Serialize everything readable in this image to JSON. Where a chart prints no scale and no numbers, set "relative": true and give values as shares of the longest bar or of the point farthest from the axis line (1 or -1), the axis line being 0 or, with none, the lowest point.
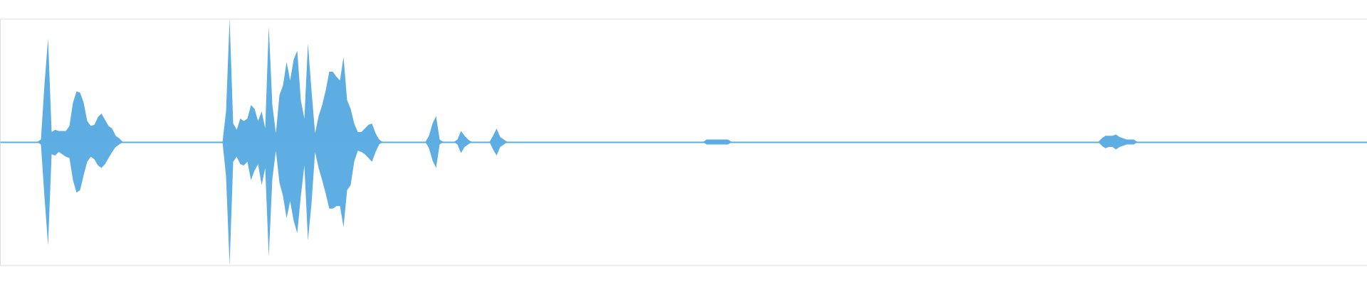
{
  "chart_data": {
    "type": "area",
    "relative": true,
    "tick_labels": false,
    "categories": [
      null,
      null,
      null,
      null,
      null,
      null,
      null,
      null,
      null,
      null,
      null,
      null,
      null,
      null,
      null,
      null,
      null,
      null,
      null,
      null,
      null,
      null,
      null,
      null,
      null,
      null,
      null,
      null,
      null,
      null,
      null,
      null,
      null,
      null,
      null,
      null,
      null,
      null,
      null,
      null,
      null,
      null,
      null,
      null,
      null,
      null,
      null,
      null,
      null,
      null,
      null,
      null,
      null,
      null,
      null,
      null,
      null,
      null,
      null,
      null,
      null,
      null,
      null,
      null,
      null,
      null,
      null,
      null,
      null,
      null,
      null,
      null,
      null,
      null,
      null,
      null,
      null,
      null,
      null,
      null,
      null,
      null,
      null,
      null,
      null,
      null,
      null,
      null,
      null,
      null,
      null,
      null,
      null,
      null,
      null,
      null,
      null,
      null,
      null,
      null,
      null,
      null,
      null,
      null,
      null,
      null,
      null,
      null,
      null,
      null,
      null,
      null,
      null,
      null,
      null,
      null,
      null,
      null,
      null,
      null,
      null,
      null,
      null,
      null,
      null,
      null,
      null,
      null,
      null,
      null,
      null,
      null,
      null,
      null,
      null,
      null,
      null,
      null,
      null,
      null,
      null,
      null,
      null,
      null,
      null,
      null,
      null,
      null,
      null,
      null,
      null,
      null,
      null,
      null,
      null,
      null,
      null,
      null,
      null,
      null,
      null,
      null,
      null,
      null,
      null,
      null,
      null,
      null,
      null,
      null,
      null,
      null,
      null,
      null,
      null,
      null,
      null,
      null,
      null,
      null,
      null,
      null,
      null,
      null,
      null,
      null,
      null,
      null,
      null,
      null,
      null,
      null,
      null,
      null,
      null,
      null,
      null,
      null,
      null,
      null,
      null,
      null,
      null,
      null,
      null,
      null,
      null,
      null,
      null,
      null,
      null,
      null,
      null,
      null,
      null,
      null,
      null,
      null,
      null,
      null,
      null,
      null,
      null,
      null,
      null,
      null,
      null,
      null,
      null,
      null,
      null,
      null,
      null,
      null,
      null,
      null,
      null,
      null,
      null,
      null,
      null,
      null,
      null,
      null,
      null,
      null,
      null,
      null,
      null,
      null,
      null,
      null,
      null,
      null,
      null,
      null,
      null,
      null,
      null,
      null,
      null,
      null,
      null,
      null,
      null,
      null,
      null,
      null,
      null,
      null,
      null,
      null,
      null,
      null,
      null,
      null,
      null,
      null,
      null,
      null,
      null,
      null,
      null,
      null,
      null,
      null,
      null,
      null,
      null,
      null,
      null,
      null,
      null,
      null,
      null,
      null,
      null,
      null,
      null,
      null,
      null,
      null,
      null,
      null,
      null,
      null,
      null,
      null,
      null,
      null,
      null,
      null,
      null,
      null,
      null,
      null,
      null,
      null,
      null,
      null,
      null,
      null,
      null,
      null,
      null,
      null,
      null,
      null,
      null,
      null,
      null,
      null,
      null,
      null,
      null,
      null,
      null,
      null,
      null,
      null,
      null,
      null,
      null,
      null,
      null,
      null,
      null,
      null,
      null,
      null,
      null,
      null,
      null,
      null,
      null,
      null,
      null,
      null,
      null,
      null,
      null,
      null,
      null,
      null,
      null,
      null,
      null,
      null,
      null,
      null,
      null,
      null,
      null,
      null,
      null,
      null,
      null,
      null,
      null,
      null,
      null,
      null,
      null,
      null
    ],
    "series": [
      {
        "color": "#5dade2",
        "values": [
          0,
          0,
          0,
          0,
          0,
          0,
          0,
          0,
          0,
          0,
          0,
          0.02,
          0.47,
          0.84,
          0.08,
          0.1,
          0.09,
          0.09,
          0.09,
          0.13,
          0.32,
          0.41,
          0.4,
          0.32,
          0.17,
          0.13,
          0.14,
          0.2,
          0.23,
          0.18,
          0.13,
          0.11,
          0.05,
          0.03,
          0,
          0,
          0,
          0,
          0,
          0,
          0,
          0,
          0,
          0,
          0,
          0,
          0,
          0,
          0,
          0,
          0,
          0,
          0,
          0,
          0,
          0,
          0,
          0,
          0,
          0,
          0,
          0,
          0,
          0.25,
          1,
          0.15,
          0.1,
          0.19,
          0.17,
          0.19,
          0.3,
          0.27,
          0.17,
          0.25,
          0.11,
          0.94,
          0.3,
          0.07,
          0.38,
          0.46,
          0.65,
          0.5,
          0.67,
          0.74,
          0.34,
          0.19,
          0.8,
          0.42,
          0.07,
          0.21,
          0.3,
          0.42,
          0.57,
          0.57,
          0.53,
          0.5,
          0.69,
          0.34,
          0.27,
          0.15,
          0.08,
          0.08,
          0.11,
          0.14,
          0.15,
          0.07,
          0.02,
          0,
          0,
          0,
          0,
          0,
          0,
          0,
          0,
          0,
          0,
          0,
          0,
          0,
          0.05,
          0.15,
          0.21,
          0.02,
          0,
          0,
          0,
          0,
          0.02,
          0.09,
          0.05,
          0.02,
          0,
          0,
          0,
          0,
          0,
          0,
          0.05,
          0.11,
          0.04,
          0.02,
          0,
          0,
          0,
          0,
          0,
          0,
          0,
          0,
          0,
          0,
          0,
          0,
          0,
          0,
          0,
          0,
          0,
          0,
          0,
          0,
          0,
          0,
          0,
          0,
          0,
          0,
          0,
          0,
          0,
          0,
          0,
          0,
          0,
          0,
          0,
          0,
          0,
          0,
          0,
          0,
          0,
          0,
          0,
          0,
          0,
          0,
          0,
          0,
          0,
          0,
          0,
          0,
          0,
          0,
          0,
          0,
          0.02,
          0.02,
          0.02,
          0.02,
          0.02,
          0.02,
          0.02,
          0,
          0,
          0,
          0,
          0,
          0,
          0,
          0,
          0,
          0,
          0,
          0,
          0,
          0,
          0,
          0,
          0,
          0,
          0,
          0,
          0,
          0,
          0,
          0,
          0,
          0,
          0,
          0,
          0,
          0,
          0,
          0,
          0,
          0,
          0,
          0,
          0,
          0,
          0,
          0,
          0,
          0,
          0,
          0,
          0,
          0,
          0,
          0,
          0,
          0,
          0,
          0,
          0,
          0,
          0,
          0,
          0,
          0,
          0,
          0,
          0,
          0,
          0,
          0,
          0,
          0,
          0,
          0,
          0,
          0,
          0,
          0,
          0,
          0,
          0,
          0,
          0,
          0,
          0,
          0,
          0,
          0,
          0,
          0,
          0,
          0,
          0,
          0,
          0,
          0,
          0,
          0,
          0,
          0,
          0,
          0,
          0,
          0,
          0,
          0,
          0,
          0,
          0,
          0,
          0.03,
          0.05,
          0.05,
          0.05,
          0.06,
          0.04,
          0.03,
          0.02,
          0.02,
          0.02,
          0,
          0,
          0,
          0,
          0,
          0,
          0,
          0,
          0,
          0,
          0,
          0,
          0,
          0,
          0,
          0,
          0,
          0,
          0,
          0,
          0,
          0,
          0,
          0,
          0,
          0,
          0,
          0,
          0,
          0,
          0,
          0,
          0,
          0,
          0,
          0,
          0,
          0,
          0,
          0,
          0,
          0,
          0,
          0,
          0,
          0,
          0,
          0,
          0,
          0,
          0,
          0,
          0,
          0,
          0,
          0,
          0,
          0,
          0,
          0,
          0,
          0,
          0,
          0,
          0
        ]
      },
      {
        "color": "#5eaee3",
        "values": [
          0,
          0,
          0,
          0,
          0,
          0,
          0,
          0,
          0,
          0,
          0,
          -0.02,
          -0.45,
          -0.84,
          -0.1,
          -0.11,
          -0.08,
          -0.1,
          -0.12,
          -0.13,
          -0.31,
          -0.41,
          -0.39,
          -0.27,
          -0.16,
          -0.12,
          -0.14,
          -0.19,
          -0.21,
          -0.18,
          -0.13,
          -0.08,
          -0.04,
          -0.02,
          0,
          0,
          0,
          0,
          0,
          0,
          0,
          0,
          0,
          0,
          0,
          0,
          0,
          0,
          0,
          0,
          0,
          0,
          0,
          0,
          0,
          0,
          0,
          0,
          0,
          0,
          0,
          0,
          0,
          -0.28,
          -1,
          -0.16,
          -0.12,
          -0.18,
          -0.19,
          -0.16,
          -0.31,
          -0.23,
          -0.18,
          -0.35,
          -0.21,
          -0.93,
          -0.3,
          -0.07,
          -0.33,
          -0.44,
          -0.62,
          -0.48,
          -0.64,
          -0.74,
          -0.44,
          -0.19,
          -0.8,
          -0.5,
          -0.08,
          -0.21,
          -0.31,
          -0.42,
          -0.54,
          -0.54,
          -0.52,
          -0.52,
          -0.69,
          -0.39,
          -0.35,
          -0.16,
          -0.07,
          -0.08,
          -0.1,
          -0.13,
          -0.16,
          -0.08,
          -0.02,
          0,
          0,
          0,
          0,
          0,
          0,
          0,
          0,
          0,
          0,
          0,
          0,
          0,
          -0.05,
          -0.15,
          -0.21,
          -0.02,
          0,
          0,
          0,
          0,
          -0.02,
          -0.09,
          -0.04,
          -0.02,
          0,
          0,
          0,
          0,
          0,
          0,
          -0.06,
          -0.11,
          -0.04,
          -0.02,
          0,
          0,
          0,
          0,
          0,
          0,
          0,
          0,
          0,
          0,
          0,
          0,
          0,
          0,
          0,
          0,
          0,
          0,
          0,
          0,
          0,
          0,
          0,
          0,
          0,
          0,
          0,
          0,
          0,
          0,
          0,
          0,
          0,
          0,
          0,
          0,
          0,
          0,
          0,
          0,
          0,
          0,
          0,
          0,
          0,
          0,
          0,
          0,
          0,
          0,
          0,
          0,
          0,
          0,
          0,
          0,
          -0.02,
          -0.02,
          -0.02,
          -0.02,
          -0.02,
          -0.02,
          -0.02,
          0,
          0,
          0,
          0,
          0,
          0,
          0,
          0,
          0,
          0,
          0,
          0,
          0,
          0,
          0,
          0,
          0,
          0,
          0,
          0,
          0,
          0,
          0,
          0,
          0,
          0,
          0,
          0,
          0,
          0,
          0,
          0,
          0,
          0,
          0,
          0,
          0,
          0,
          0,
          0,
          0,
          0,
          0,
          0,
          0,
          0,
          0,
          0,
          0,
          0,
          0,
          0,
          0,
          0,
          0,
          0,
          0,
          0,
          0,
          0,
          0,
          0,
          0,
          0,
          0,
          0,
          0,
          0,
          0,
          0,
          0,
          0,
          0,
          0,
          0,
          0,
          0,
          0,
          0,
          0,
          0,
          0,
          0,
          0,
          0,
          0,
          0,
          0,
          0,
          0,
          0,
          0,
          0,
          0,
          0,
          0,
          0,
          0,
          0,
          0,
          0,
          0,
          0,
          0,
          -0.03,
          -0.05,
          -0.04,
          -0.04,
          -0.06,
          -0.04,
          -0.03,
          -0.02,
          -0.02,
          -0.02,
          0,
          0,
          0,
          0,
          0,
          0,
          0,
          0,
          0,
          0,
          0,
          0,
          0,
          0,
          0,
          0,
          0,
          0,
          0,
          0,
          0,
          0,
          0,
          0,
          0,
          0,
          0,
          0,
          0,
          0,
          0,
          0,
          0,
          0,
          0,
          0,
          0,
          0,
          0,
          0,
          0,
          0,
          0,
          0,
          0,
          0,
          0,
          0,
          0,
          0,
          0,
          0,
          0,
          0,
          0,
          0,
          0,
          0,
          0,
          0,
          0,
          0,
          0,
          0,
          0
        ]
      }
    ]
  }
}
